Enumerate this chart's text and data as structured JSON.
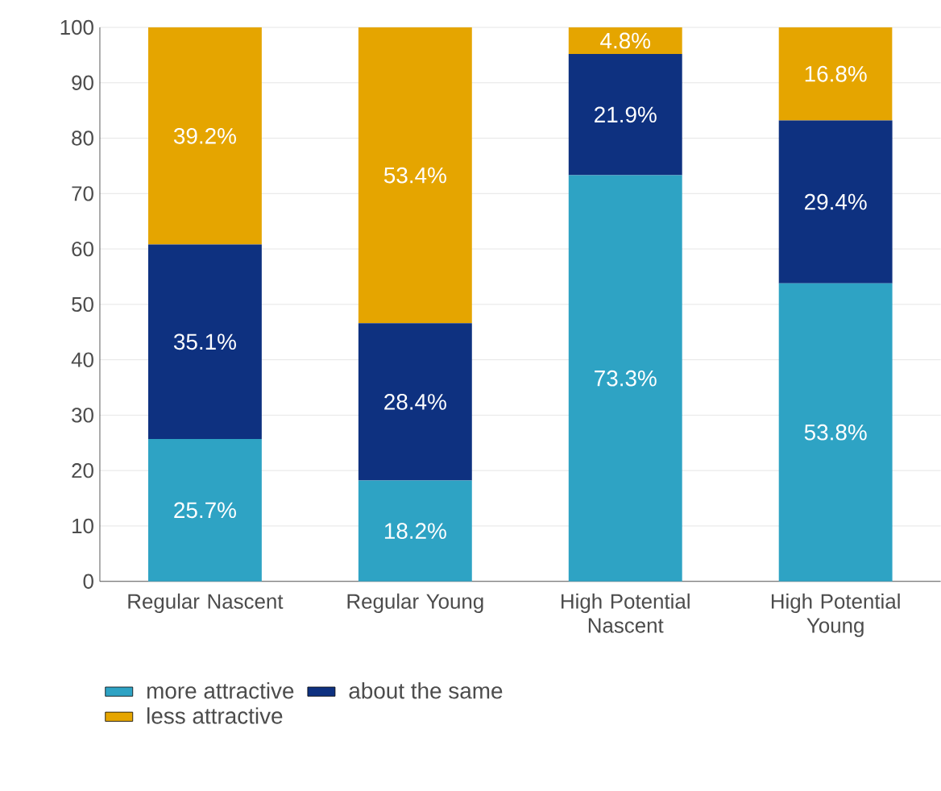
{
  "chart_data": {
    "type": "bar",
    "stacked": true,
    "categories": [
      "Regular Nascent",
      "Regular Young",
      "High Potential Nascent",
      "High Potential Young"
    ],
    "series": [
      {
        "name": "more attractive",
        "color": "#2ea3c4",
        "values": [
          25.7,
          18.2,
          73.3,
          53.8
        ],
        "value_labels": [
          "25.7%",
          "18.2%",
          "73.3%",
          "53.8%"
        ]
      },
      {
        "name": "about the same",
        "color": "#0e3180",
        "values": [
          35.1,
          28.4,
          21.9,
          29.4
        ],
        "value_labels": [
          "35.1%",
          "28.4%",
          "21.9%",
          "29.4%"
        ]
      },
      {
        "name": "less attractive",
        "color": "#e5a500",
        "values": [
          39.2,
          53.4,
          4.8,
          16.8
        ],
        "value_labels": [
          "39.2%",
          "53.4%",
          "4.8%",
          "16.8%"
        ]
      }
    ],
    "ylim": [
      0,
      100
    ],
    "yticks": [
      0,
      10,
      20,
      30,
      40,
      50,
      60,
      70,
      80,
      90,
      100
    ],
    "grid": "y",
    "legend": "bottom"
  }
}
